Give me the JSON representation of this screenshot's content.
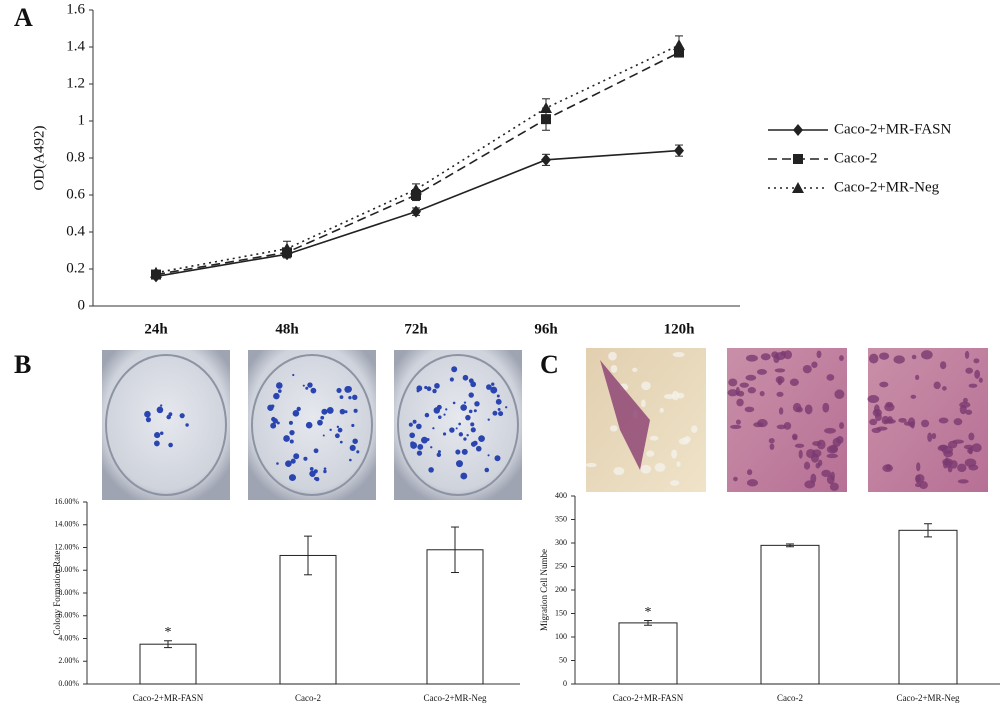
{
  "chart_data": [
    {
      "type": "line",
      "panel": "A",
      "ylabel": "OD(A492)",
      "categories": [
        "24h",
        "48h",
        "72h",
        "96h",
        "120h"
      ],
      "ylim": [
        0,
        1.6
      ],
      "yticks": [
        0,
        0.2,
        0.4,
        0.6,
        0.8,
        1,
        1.2,
        1.4,
        1.6
      ],
      "series": [
        {
          "name": "Caco-2+MR-FASN",
          "color": "#222222",
          "marker": "diamond",
          "dash": "solid",
          "values": [
            0.16,
            0.28,
            0.51,
            0.79,
            0.84
          ],
          "errors": [
            0.01,
            0.02,
            0.02,
            0.03,
            0.03
          ]
        },
        {
          "name": "Caco-2",
          "color": "#222222",
          "marker": "square",
          "dash": "dashed",
          "values": [
            0.17,
            0.29,
            0.6,
            1.01,
            1.37
          ],
          "errors": [
            0.01,
            0.02,
            0.03,
            0.06,
            0.02
          ]
        },
        {
          "name": "Caco-2+MR-Neg",
          "color": "#222222",
          "marker": "triangle",
          "dash": "dotted",
          "values": [
            0.18,
            0.31,
            0.63,
            1.07,
            1.41
          ],
          "errors": [
            0.01,
            0.04,
            0.03,
            0.05,
            0.05
          ]
        }
      ],
      "legend": "right"
    },
    {
      "type": "bar",
      "panel": "B",
      "ylabel": "Colony Formation Rate",
      "categories": [
        "Caco-2+MR-FASN",
        "Caco-2",
        "Caco-2+MR-Neg"
      ],
      "values": [
        3.5,
        11.3,
        11.8
      ],
      "errors": [
        0.3,
        1.7,
        2.0
      ],
      "color": "#ffffff",
      "ylim": [
        0,
        16
      ],
      "yticks": [
        {
          "value": 0,
          "label": "0.00%"
        },
        {
          "value": 2,
          "label": "2.00%"
        },
        {
          "value": 4,
          "label": "4.00%"
        },
        {
          "value": 6,
          "label": "6.00%"
        },
        {
          "value": 8,
          "label": "8.00%"
        },
        {
          "value": 10,
          "label": "10.00%"
        },
        {
          "value": 12,
          "label": "12.00%"
        },
        {
          "value": 14,
          "label": "14.00%"
        },
        {
          "value": 16,
          "label": "16.00%"
        }
      ],
      "annotations": [
        {
          "text": "*",
          "category": "Caco-2+MR-FASN"
        }
      ]
    },
    {
      "type": "bar",
      "panel": "C",
      "ylabel": "Migration Cell Numbe",
      "categories": [
        "Caco-2+MR-FASN",
        "Caco-2",
        "Caco-2+MR-Neg"
      ],
      "values": [
        130,
        295,
        327
      ],
      "errors": [
        5,
        3,
        14
      ],
      "color": "#ffffff",
      "ylim": [
        0,
        400
      ],
      "yticks": [
        0,
        50,
        100,
        150,
        200,
        250,
        300,
        350,
        400
      ],
      "annotations": [
        {
          "text": "*",
          "category": "Caco-2+MR-FASN"
        }
      ]
    }
  ]
}
